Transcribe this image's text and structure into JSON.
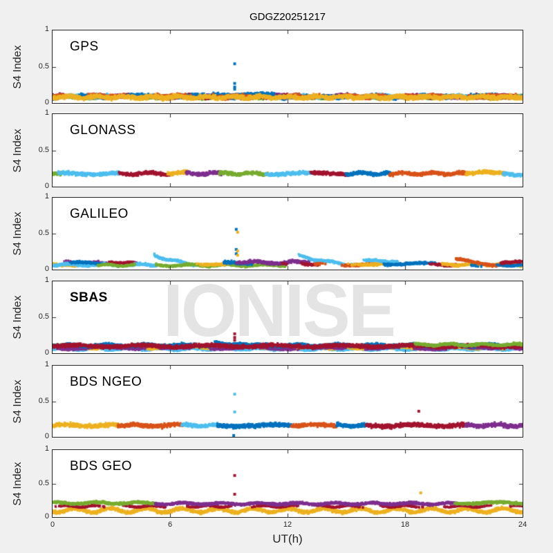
{
  "figure": {
    "title": "GDGZ20251217",
    "background": "#f0f0f0",
    "axes_color": "#262626",
    "watermark_color": "#e4e4e4"
  },
  "chart_data": {
    "type": "scatter",
    "title": "GDGZ20251217",
    "xlabel": "UT(h)",
    "ylabel": "S4 Index",
    "xlim": [
      0,
      24
    ],
    "ylim": [
      0,
      1
    ],
    "xticks": [
      0,
      6,
      12,
      18,
      24
    ],
    "xticklabels": [
      "0",
      "6",
      "12",
      "18",
      "24"
    ],
    "yticks": [
      0,
      0.5,
      1
    ],
    "yticklabels": [
      "0",
      "0.5",
      "1"
    ],
    "grid": false,
    "legend": "none",
    "watermark": "IONISE",
    "palette": [
      "#0072BD",
      "#D95319",
      "#EDB120",
      "#7E2F8E",
      "#77AC30",
      "#4DBEEE",
      "#A2142F"
    ],
    "panels": [
      {
        "label": "GPS",
        "bold": false,
        "bands": [
          {
            "color": "#7E2F8E",
            "x0": 0,
            "x1": 24,
            "level": 0.09,
            "spread": 0.03,
            "patchy": true
          },
          {
            "color": "#77AC30",
            "x0": 0,
            "x1": 24,
            "level": 0.08,
            "spread": 0.025,
            "patchy": true
          },
          {
            "color": "#4DBEEE",
            "x0": 0,
            "x1": 24,
            "level": 0.09,
            "spread": 0.03,
            "patchy": true
          },
          {
            "color": "#A2142F",
            "x0": 0,
            "x1": 24,
            "level": 0.09,
            "spread": 0.03,
            "patchy": true
          },
          {
            "color": "#0072BD",
            "x0": 0,
            "x1": 24,
            "level": 0.09,
            "spread": 0.035,
            "patchy": true
          },
          {
            "color": "#0072BD",
            "x0": 8.2,
            "x1": 11.3,
            "level": 0.11,
            "spread": 0.035
          },
          {
            "color": "#D95319",
            "x0": 0,
            "x1": 24,
            "level": 0.09,
            "spread": 0.035,
            "patchy": true
          },
          {
            "color": "#EDB120",
            "x0": 0,
            "x1": 24,
            "level": 0.08,
            "spread": 0.035
          }
        ],
        "spikes": [
          {
            "x": 9.3,
            "color": "#0072BD",
            "values": [
              0.54,
              0.27,
              0.22,
              0.19
            ]
          }
        ],
        "dots": []
      },
      {
        "label": "GLONASS",
        "bold": false,
        "bands": [
          {
            "color": "#77AC30",
            "x0": 0,
            "x1": 0.5,
            "level": 0.19,
            "spread": 0.028
          },
          {
            "color": "#4DBEEE",
            "x0": 0.3,
            "x1": 3.4,
            "level": 0.18,
            "spread": 0.028
          },
          {
            "color": "#A2142F",
            "x0": 3.4,
            "x1": 6.0,
            "level": 0.18,
            "spread": 0.028
          },
          {
            "color": "#EDB120",
            "x0": 5.9,
            "x1": 6.9,
            "level": 0.19,
            "spread": 0.028
          },
          {
            "color": "#7E2F8E",
            "x0": 6.8,
            "x1": 8.6,
            "level": 0.18,
            "spread": 0.028
          },
          {
            "color": "#77AC30",
            "x0": 8.5,
            "x1": 11.0,
            "level": 0.18,
            "spread": 0.028
          },
          {
            "color": "#4DBEEE",
            "x0": 10.9,
            "x1": 13.3,
            "level": 0.18,
            "spread": 0.028
          },
          {
            "color": "#A2142F",
            "x0": 13.2,
            "x1": 15.1,
            "level": 0.18,
            "spread": 0.028
          },
          {
            "color": "#0072BD",
            "x0": 15.0,
            "x1": 17.3,
            "level": 0.18,
            "spread": 0.028
          },
          {
            "color": "#D95319",
            "x0": 17.2,
            "x1": 21.2,
            "level": 0.18,
            "spread": 0.028
          },
          {
            "color": "#EDB120",
            "x0": 21.1,
            "x1": 23.1,
            "level": 0.19,
            "spread": 0.028
          },
          {
            "color": "#4DBEEE",
            "x0": 23.0,
            "x1": 24,
            "level": 0.17,
            "spread": 0.028
          }
        ],
        "spikes": [],
        "dots": []
      },
      {
        "label": "GALILEO",
        "bold": false,
        "bands": [
          {
            "color": "#EDB120",
            "x0": 0,
            "x1": 1.2,
            "level": 0.07,
            "spread": 0.02
          },
          {
            "color": "#7E2F8E",
            "x0": 0,
            "x1": 4.3,
            "level": 0.09,
            "spread": 0.025,
            "patchy": true
          },
          {
            "color": "#4DBEEE",
            "x0": 0,
            "x1": 5.3,
            "level": 0.065,
            "spread": 0.02
          },
          {
            "color": "#0072BD",
            "x0": 0.8,
            "x1": 2.6,
            "level": 0.09,
            "spread": 0.02,
            "patchy": true
          },
          {
            "color": "#A2142F",
            "x0": 2.9,
            "x1": 4.1,
            "level": 0.1,
            "spread": 0.02,
            "patchy": true
          },
          {
            "color": "#77AC30",
            "x0": 2.3,
            "x1": 4.2,
            "level": 0.06,
            "spread": 0.015
          },
          {
            "color": "#4DBEEE",
            "x0": 5.2,
            "x1": 7.5,
            "level": 0.08,
            "spread": 0.02,
            "arc": [
              0.2,
              0.07
            ]
          },
          {
            "color": "#77AC30",
            "x0": 5.3,
            "x1": 11.9,
            "level": 0.06,
            "spread": 0.018
          },
          {
            "color": "#EDB120",
            "x0": 6.9,
            "x1": 9.6,
            "level": 0.08,
            "spread": 0.02,
            "patchy": true
          },
          {
            "color": "#0072BD",
            "x0": 8.7,
            "x1": 10.6,
            "level": 0.09,
            "spread": 0.025,
            "patchy": true
          },
          {
            "color": "#7E2F8E",
            "x0": 9.4,
            "x1": 13.1,
            "level": 0.1,
            "spread": 0.025
          },
          {
            "color": "#A2142F",
            "x0": 11.7,
            "x1": 13.6,
            "level": 0.08,
            "spread": 0.02,
            "patchy": true
          },
          {
            "color": "#4DBEEE",
            "x0": 12.6,
            "x1": 15.5,
            "level": 0.08,
            "spread": 0.02,
            "arc": [
              0.19,
              0.07
            ]
          },
          {
            "color": "#D95319",
            "x0": 13.4,
            "x1": 16.6,
            "level": 0.07,
            "spread": 0.02,
            "patchy": true
          },
          {
            "color": "#EDB120",
            "x0": 14.4,
            "x1": 17.6,
            "level": 0.08,
            "spread": 0.02,
            "patchy": true
          },
          {
            "color": "#4DBEEE",
            "x0": 15.9,
            "x1": 17.6,
            "level": 0.12,
            "spread": 0.02
          },
          {
            "color": "#0072BD",
            "x0": 16.9,
            "x1": 19.6,
            "level": 0.08,
            "spread": 0.02,
            "patchy": true
          },
          {
            "color": "#A2142F",
            "x0": 18.9,
            "x1": 20.6,
            "level": 0.07,
            "spread": 0.02,
            "patchy": true
          },
          {
            "color": "#EDB120",
            "x0": 19.9,
            "x1": 24,
            "level": 0.07,
            "spread": 0.02
          },
          {
            "color": "#D95319",
            "x0": 20.6,
            "x1": 23.3,
            "level": 0.08,
            "spread": 0.02,
            "arc": [
              0.14,
              0.06
            ]
          },
          {
            "color": "#0072BD",
            "x0": 21.4,
            "x1": 24,
            "level": 0.06,
            "spread": 0.015,
            "patchy": true
          },
          {
            "color": "#A2142F",
            "x0": 22.9,
            "x1": 24,
            "level": 0.1,
            "spread": 0.02
          }
        ],
        "spikes": [
          {
            "x": 9.38,
            "color": "#0072BD",
            "values": [
              0.56,
              0.28,
              0.22
            ]
          },
          {
            "x": 9.45,
            "color": "#EDB120",
            "values": [
              0.52,
              0.26,
              0.2
            ]
          }
        ],
        "dots": []
      },
      {
        "label": "SBAS",
        "bold": true,
        "bands": [
          {
            "color": "#4DBEEE",
            "x0": 0,
            "x1": 24,
            "level": 0.06,
            "spread": 0.02
          },
          {
            "color": "#77AC30",
            "x0": 0,
            "x1": 24,
            "level": 0.1,
            "spread": 0.02,
            "patchy": true
          },
          {
            "color": "#EDB120",
            "x0": 0,
            "x1": 24,
            "level": 0.08,
            "spread": 0.025,
            "patchy": true
          },
          {
            "color": "#7E2F8E",
            "x0": 0,
            "x1": 24,
            "level": 0.07,
            "spread": 0.02,
            "patchy": true
          },
          {
            "color": "#0072BD",
            "x0": 0,
            "x1": 24,
            "level": 0.11,
            "spread": 0.025
          },
          {
            "color": "#0072BD",
            "x0": 8.3,
            "x1": 9.9,
            "level": 0.14,
            "spread": 0.02,
            "arc": [
              0.16,
              0.12
            ]
          },
          {
            "color": "#A2142F",
            "x0": 0,
            "x1": 24,
            "level": 0.1,
            "spread": 0.03
          },
          {
            "color": "#77AC30",
            "x0": 18.5,
            "x1": 24,
            "level": 0.12,
            "spread": 0.02
          }
        ],
        "spikes": [
          {
            "x": 9.3,
            "color": "#A2142F",
            "values": [
              0.27,
              0.22,
              0.18
            ]
          }
        ],
        "dots": []
      },
      {
        "label": "BDS NGEO",
        "bold": false,
        "bands": [
          {
            "color": "#EDB120",
            "x0": 0,
            "x1": 3.4,
            "level": 0.16,
            "spread": 0.035
          },
          {
            "color": "#D95319",
            "x0": 3.35,
            "x1": 6.65,
            "level": 0.16,
            "spread": 0.035
          },
          {
            "color": "#4DBEEE",
            "x0": 6.6,
            "x1": 8.45,
            "level": 0.16,
            "spread": 0.03
          },
          {
            "color": "#0072BD",
            "x0": 8.4,
            "x1": 12.2,
            "level": 0.16,
            "spread": 0.035
          },
          {
            "color": "#D95319",
            "x0": 12.2,
            "x1": 14.5,
            "level": 0.16,
            "spread": 0.03
          },
          {
            "color": "#0072BD",
            "x0": 14.5,
            "x1": 16.1,
            "level": 0.16,
            "spread": 0.03
          },
          {
            "color": "#A2142F",
            "x0": 16.0,
            "x1": 21.2,
            "level": 0.16,
            "spread": 0.035
          },
          {
            "color": "#7E2F8E",
            "x0": 21.1,
            "x1": 24,
            "level": 0.16,
            "spread": 0.035
          }
        ],
        "spikes": [
          {
            "x": 9.3,
            "color": "#4DBEEE",
            "values": [
              0.6,
              0.35
            ]
          }
        ],
        "dots": [
          {
            "x": 18.7,
            "y": 0.36,
            "color": "#A2142F"
          },
          {
            "x": 9.25,
            "y": 0.02,
            "color": "#0072BD"
          }
        ]
      },
      {
        "label": "BDS GEO",
        "bold": false,
        "bands": [
          {
            "color": "#EDB120",
            "x0": 0,
            "x1": 24,
            "level": 0.1,
            "spread": 0.03,
            "amp": 0.03
          },
          {
            "color": "#A2142F",
            "x0": 0,
            "x1": 24,
            "level": 0.16,
            "spread": 0.012,
            "patchy": true
          },
          {
            "color": "#77AC30",
            "x0": 0,
            "x1": 5.35,
            "level": 0.21,
            "spread": 0.022
          },
          {
            "color": "#7E2F8E",
            "x0": 5.25,
            "x1": 20.65,
            "level": 0.2,
            "spread": 0.022
          },
          {
            "color": "#77AC30",
            "x0": 20.55,
            "x1": 24,
            "level": 0.21,
            "spread": 0.022
          }
        ],
        "spikes": [
          {
            "x": 9.3,
            "color": "#A2142F",
            "values": [
              0.62,
              0.34
            ]
          }
        ],
        "dots": [
          {
            "x": 18.8,
            "y": 0.36,
            "color": "#EDB120"
          }
        ]
      }
    ]
  }
}
